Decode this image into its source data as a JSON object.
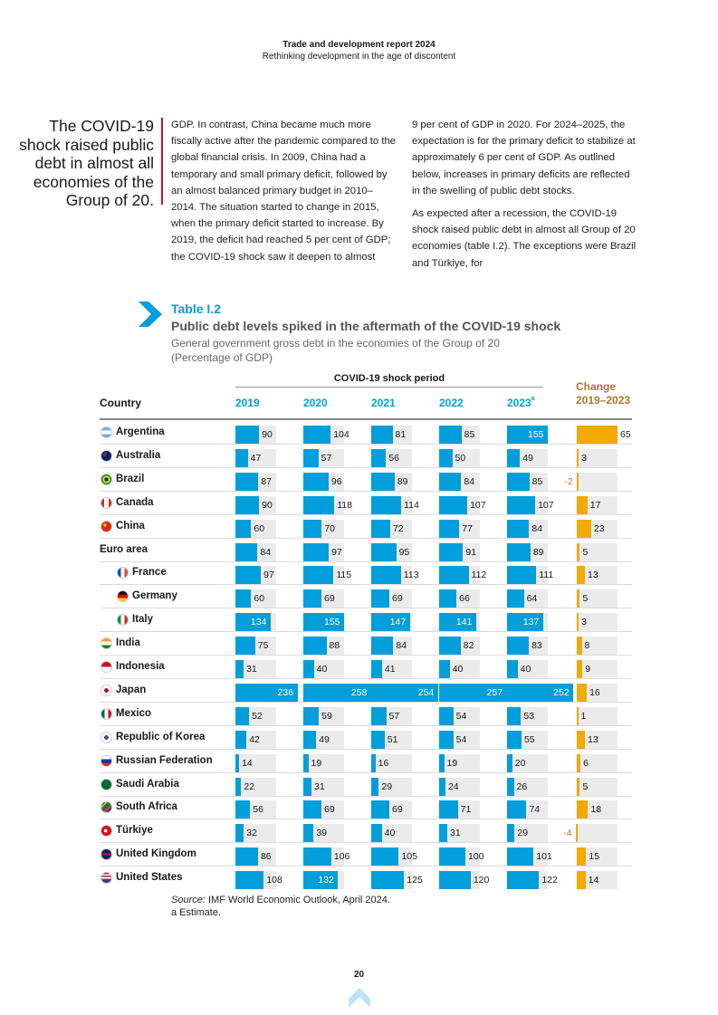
{
  "header": {
    "title": "Trade and development report 2024",
    "subtitle": "Rethinking development in the age of discontent"
  },
  "pullquote": "The COVID-19 shock raised public debt in almost all economies of the Group of 20.",
  "body": {
    "col1": "GDP. In contrast, China became much more fiscally active after the pandemic compared to the global financial crisis. In 2009, China had a temporary and small primary deficit, followed by an almost balanced primary budget in 2010–2014. The situation started to change in 2015, when the primary deficit started to increase. By 2019, the deficit had reached 5 per cent of GDP; the COVID-19 shock saw it deepen to almost",
    "col2_p1": "9 per cent of GDP in 2020. For 2024–2025, the expectation is for the primary deficit to stabilize at approximately 6 per cent of GDP. As outlined below, increases in primary deficits are reflected in the swelling of public debt stocks.",
    "col2_p2": "As expected after a recession, the COVID-19 shock raised public debt in almost all Group of 20 economies (table I.2). The exceptions were Brazil and Türkiye, for"
  },
  "table": {
    "label": "Table I.2",
    "title": "Public debt levels spiked in the aftermath of the COVID-19 shock",
    "subtitle": "General government gross debt in the economies of the Group of 20",
    "unit": "(Percentage of GDP)",
    "period_label": "COVID-19 shock period",
    "country_header": "Country",
    "year_headers": [
      "2019",
      "2020",
      "2021",
      "2022",
      "2023"
    ],
    "estimate_marker": "a",
    "change_header_1": "Change",
    "change_header_2": "2019–2023",
    "accent_color": "#009edb",
    "change_color": "#f2a900"
  },
  "chart_data": {
    "type": "table",
    "title": "Public debt levels spiked in the aftermath of the COVID-19 shock",
    "columns": [
      "2019",
      "2020",
      "2021",
      "2022",
      "2023a",
      "Change 2019–2023"
    ],
    "rows": [
      {
        "country": "Argentina",
        "flag": "argentina-flag-icon",
        "indent": false,
        "values": [
          90,
          104,
          81,
          85,
          155
        ],
        "change": 65
      },
      {
        "country": "Australia",
        "flag": "australia-flag-icon",
        "indent": false,
        "values": [
          47,
          57,
          56,
          50,
          49
        ],
        "change": 3
      },
      {
        "country": "Brazil",
        "flag": "brazil-flag-icon",
        "indent": false,
        "values": [
          87,
          96,
          89,
          84,
          85
        ],
        "change": -2
      },
      {
        "country": "Canada",
        "flag": "canada-flag-icon",
        "indent": false,
        "values": [
          90,
          118,
          114,
          107,
          107
        ],
        "change": 17
      },
      {
        "country": "China",
        "flag": "china-flag-icon",
        "indent": false,
        "values": [
          60,
          70,
          72,
          77,
          84
        ],
        "change": 23
      },
      {
        "country": "Euro area",
        "flag": "",
        "indent": false,
        "values": [
          84,
          97,
          95,
          91,
          89
        ],
        "change": 5
      },
      {
        "country": "France",
        "flag": "france-flag-icon",
        "indent": true,
        "values": [
          97,
          115,
          113,
          112,
          111
        ],
        "change": 13
      },
      {
        "country": "Germany",
        "flag": "germany-flag-icon",
        "indent": true,
        "values": [
          60,
          69,
          69,
          66,
          64
        ],
        "change": 5
      },
      {
        "country": "Italy",
        "flag": "italy-flag-icon",
        "indent": true,
        "values": [
          134,
          155,
          147,
          141,
          137
        ],
        "change": 3
      },
      {
        "country": "India",
        "flag": "india-flag-icon",
        "indent": false,
        "values": [
          75,
          88,
          84,
          82,
          83
        ],
        "change": 8
      },
      {
        "country": "Indonesia",
        "flag": "indonesia-flag-icon",
        "indent": false,
        "values": [
          31,
          40,
          41,
          40,
          40
        ],
        "change": 9
      },
      {
        "country": "Japan",
        "flag": "japan-flag-icon",
        "indent": false,
        "values": [
          236,
          258,
          254,
          257,
          252
        ],
        "change": 16
      },
      {
        "country": "Mexico",
        "flag": "mexico-flag-icon",
        "indent": false,
        "values": [
          52,
          59,
          57,
          54,
          53
        ],
        "change": 1
      },
      {
        "country": "Republic of Korea",
        "flag": "korea-flag-icon",
        "indent": false,
        "values": [
          42,
          49,
          51,
          54,
          55
        ],
        "change": 13
      },
      {
        "country": "Russian Federation",
        "flag": "russia-flag-icon",
        "indent": false,
        "values": [
          14,
          19,
          16,
          19,
          20
        ],
        "change": 6
      },
      {
        "country": "Saudi Arabia",
        "flag": "saudi-arabia-flag-icon",
        "indent": false,
        "values": [
          22,
          31,
          29,
          24,
          26
        ],
        "change": 5
      },
      {
        "country": "South Africa",
        "flag": "south-africa-flag-icon",
        "indent": false,
        "values": [
          56,
          69,
          69,
          71,
          74
        ],
        "change": 18
      },
      {
        "country": "Türkiye",
        "flag": "turkiye-flag-icon",
        "indent": false,
        "values": [
          32,
          39,
          40,
          31,
          29
        ],
        "change": -4
      },
      {
        "country": "United Kingdom",
        "flag": "uk-flag-icon",
        "indent": false,
        "values": [
          86,
          106,
          105,
          100,
          101
        ],
        "change": 15
      },
      {
        "country": "United States",
        "flag": "us-flag-icon",
        "indent": false,
        "values": [
          108,
          132,
          125,
          120,
          122
        ],
        "change": 14
      }
    ]
  },
  "source": {
    "label": "Source:",
    "text": "IMF World Economic Outlook, April 2024.",
    "note": "a Estimate."
  },
  "page_number": "20"
}
